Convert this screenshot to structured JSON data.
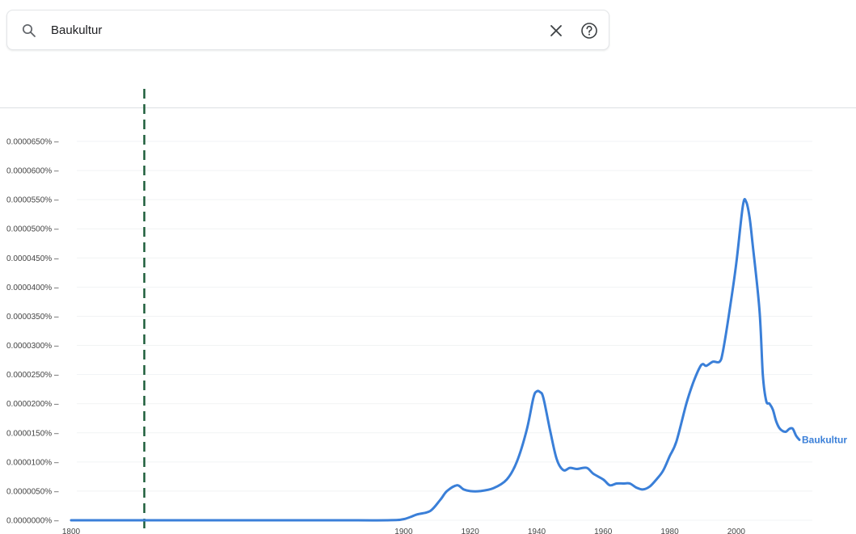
{
  "search": {
    "query": "Baukultur"
  },
  "colors": {
    "series": "#3a7fd8",
    "marker": "#1e5e3b",
    "grid": "#f1f3f4",
    "rule": "#dcdfe3"
  },
  "chart_data": {
    "type": "line",
    "title": "",
    "xlabel": "",
    "ylabel": "",
    "x_ticks": [
      1800,
      1900,
      1920,
      1940,
      1960,
      1980,
      2000
    ],
    "y_ticks": [
      0,
      5e-07,
      1e-06,
      1.5e-06,
      2e-06,
      2.5e-06,
      3e-06,
      3.5e-06,
      4e-06,
      4.5e-06,
      5e-06,
      5.5e-06,
      6e-06,
      6.5e-06
    ],
    "y_tick_labels": [
      "0.0000000%",
      "0.0000050%",
      "0.0000100%",
      "0.0000150%",
      "0.0000200%",
      "0.0000250%",
      "0.0000300%",
      "0.0000350%",
      "0.0000400%",
      "0.0000450%",
      "0.0000500%",
      "0.0000550%",
      "0.0000600%",
      "0.0000650%"
    ],
    "xlim": [
      1800,
      2019
    ],
    "ylim": [
      0,
      6.5e-06
    ],
    "marker_year": 1822,
    "grid": true,
    "series": [
      {
        "name": "Baukultur",
        "x": [
          1800,
          1820,
          1840,
          1860,
          1880,
          1895,
          1900,
          1904,
          1908,
          1911,
          1913,
          1916,
          1918,
          1920,
          1923,
          1927,
          1931,
          1934,
          1937,
          1939,
          1940,
          1941,
          1942,
          1944,
          1946,
          1948,
          1950,
          1952,
          1955,
          1957,
          1960,
          1962,
          1964,
          1966,
          1968,
          1970,
          1972,
          1974,
          1976,
          1978,
          1980,
          1982,
          1985,
          1987,
          1989,
          1990,
          1991,
          1993,
          1995,
          1996,
          1998,
          2000,
          2002,
          2003,
          2004,
          2005,
          2007,
          2008,
          2009,
          2010,
          2011,
          2012,
          2013,
          2014,
          2015,
          2016,
          2017,
          2018,
          2019
        ],
        "values": [
          0,
          0,
          0,
          0,
          0,
          0,
          2e-08,
          1e-07,
          1.6e-07,
          3.5e-07,
          5e-07,
          6e-07,
          5.3e-07,
          5e-07,
          5e-07,
          5.5e-07,
          7e-07,
          1e-06,
          1.55e-06,
          2.1e-06,
          2.21e-06,
          2.2e-06,
          2.1e-06,
          1.55e-06,
          1.05e-06,
          8.6e-07,
          9e-07,
          8.8e-07,
          9e-07,
          8e-07,
          7e-07,
          6e-07,
          6.3e-07,
          6.3e-07,
          6.3e-07,
          5.6e-07,
          5.3e-07,
          5.8e-07,
          7e-07,
          8.5e-07,
          1.1e-06,
          1.35e-06,
          2e-06,
          2.35e-06,
          2.62e-06,
          2.68e-06,
          2.65e-06,
          2.72e-06,
          2.72e-06,
          2.9e-06,
          3.6e-06,
          4.4e-06,
          5.4e-06,
          5.46e-06,
          5.2e-06,
          4.7e-06,
          3.6e-06,
          2.5e-06,
          2.05e-06,
          2e-06,
          1.9e-06,
          1.7e-06,
          1.58e-06,
          1.53e-06,
          1.52e-06,
          1.57e-06,
          1.57e-06,
          1.45e-06,
          1.38e-06
        ]
      }
    ]
  }
}
